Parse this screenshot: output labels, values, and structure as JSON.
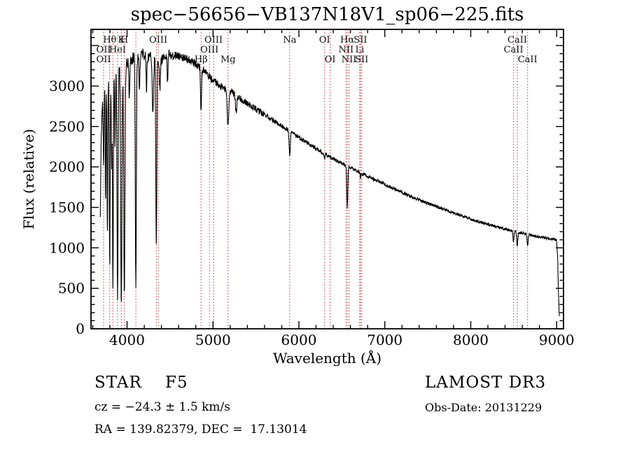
{
  "chart_data": {
    "type": "line",
    "title": "spec−56656−VB137N18V1_sp06−225.fits",
    "xlabel": "Wavelength (Å)",
    "ylabel": "Flux (relative)",
    "xlim": [
      3580,
      9080
    ],
    "ylim": [
      0,
      3700
    ],
    "xticks": [
      4000,
      5000,
      6000,
      7000,
      8000,
      9000
    ],
    "yticks": [
      0,
      500,
      1000,
      1500,
      2000,
      2500,
      3000
    ],
    "x_minor_step": 200,
    "y_minor_step": 100,
    "y_major_step": 500,
    "grid": false,
    "legend": "none",
    "line_color": "#000000",
    "marker_line_color": "#c03030",
    "marker_label_color": "#111111",
    "frame_color": "#000000",
    "series_name": "flux",
    "wl_start": 3688,
    "wl_end": 9032,
    "wl_step": 3,
    "noise_seed": 12,
    "continuum": [
      [
        3688,
        1400
      ],
      [
        3700,
        2450
      ],
      [
        3715,
        2820
      ],
      [
        3735,
        2980
      ],
      [
        3765,
        3060
      ],
      [
        3800,
        3120
      ],
      [
        3850,
        3170
      ],
      [
        3900,
        3210
      ],
      [
        3950,
        3240
      ],
      [
        4000,
        3290
      ],
      [
        4080,
        3350
      ],
      [
        4180,
        3400
      ],
      [
        4280,
        3360
      ],
      [
        4380,
        3330
      ],
      [
        4480,
        3370
      ],
      [
        4580,
        3380
      ],
      [
        4680,
        3340
      ],
      [
        4780,
        3290
      ],
      [
        4880,
        3210
      ],
      [
        4980,
        3090
      ],
      [
        5080,
        3000
      ],
      [
        5180,
        2940
      ],
      [
        5280,
        2880
      ],
      [
        5380,
        2800
      ],
      [
        5480,
        2730
      ],
      [
        5580,
        2660
      ],
      [
        5680,
        2590
      ],
      [
        5780,
        2520
      ],
      [
        5880,
        2450
      ],
      [
        5980,
        2380
      ],
      [
        6080,
        2310
      ],
      [
        6180,
        2240
      ],
      [
        6280,
        2175
      ],
      [
        6380,
        2115
      ],
      [
        6480,
        2055
      ],
      [
        6580,
        2000
      ],
      [
        6680,
        1950
      ],
      [
        6780,
        1895
      ],
      [
        6880,
        1845
      ],
      [
        6980,
        1795
      ],
      [
        7080,
        1745
      ],
      [
        7180,
        1695
      ],
      [
        7280,
        1648
      ],
      [
        7380,
        1602
      ],
      [
        7480,
        1558
      ],
      [
        7580,
        1518
      ],
      [
        7680,
        1478
      ],
      [
        7780,
        1440
      ],
      [
        7880,
        1402
      ],
      [
        7980,
        1365
      ],
      [
        8080,
        1330
      ],
      [
        8180,
        1298
      ],
      [
        8280,
        1268
      ],
      [
        8380,
        1238
      ],
      [
        8480,
        1212
      ],
      [
        8580,
        1188
      ],
      [
        8680,
        1163
      ],
      [
        8780,
        1142
      ],
      [
        8880,
        1122
      ],
      [
        8960,
        1105
      ],
      [
        9000,
        1092
      ],
      [
        9012,
        880
      ],
      [
        9022,
        420
      ],
      [
        9032,
        130
      ]
    ],
    "absorption_lines": [
      {
        "center": 3727,
        "depth": 900,
        "sigma": 5
      },
      {
        "center": 3750,
        "depth": 1500,
        "sigma": 4
      },
      {
        "center": 3771,
        "depth": 1900,
        "sigma": 4
      },
      {
        "center": 3798,
        "depth": 2350,
        "sigma": 5
      },
      {
        "center": 3820,
        "depth": 1100,
        "sigma": 4
      },
      {
        "center": 3835,
        "depth": 2650,
        "sigma": 5
      },
      {
        "center": 3860,
        "depth": 900,
        "sigma": 4
      },
      {
        "center": 3889,
        "depth": 2850,
        "sigma": 6
      },
      {
        "center": 3933,
        "depth": 2950,
        "sigma": 7
      },
      {
        "center": 3968,
        "depth": 2850,
        "sigma": 7
      },
      {
        "center": 4026,
        "depth": 450,
        "sigma": 5
      },
      {
        "center": 4102,
        "depth": 2850,
        "sigma": 6
      },
      {
        "center": 4144,
        "depth": 400,
        "sigma": 5
      },
      {
        "center": 4226,
        "depth": 450,
        "sigma": 5
      },
      {
        "center": 4300,
        "depth": 650,
        "sigma": 8
      },
      {
        "center": 4340,
        "depth": 2350,
        "sigma": 6
      },
      {
        "center": 4383,
        "depth": 400,
        "sigma": 5
      },
      {
        "center": 4471,
        "depth": 330,
        "sigma": 5
      },
      {
        "center": 4861,
        "depth": 560,
        "sigma": 6
      },
      {
        "center": 5175,
        "depth": 430,
        "sigma": 9
      },
      {
        "center": 5270,
        "depth": 230,
        "sigma": 7
      },
      {
        "center": 5893,
        "depth": 290,
        "sigma": 7
      },
      {
        "center": 6300,
        "depth": 80,
        "sigma": 5
      },
      {
        "center": 6563,
        "depth": 520,
        "sigma": 6
      },
      {
        "center": 6716,
        "depth": 60,
        "sigma": 5
      },
      {
        "center": 8498,
        "depth": 130,
        "sigma": 6
      },
      {
        "center": 8542,
        "depth": 175,
        "sigma": 6
      },
      {
        "center": 8662,
        "depth": 150,
        "sigma": 6
      }
    ],
    "marker_lines": [
      3727,
      3798,
      3835,
      3889,
      3933,
      3968,
      4102,
      4340,
      4363,
      4861,
      4959,
      5007,
      5175,
      5893,
      6300,
      6363,
      6548,
      6563,
      6583,
      6708,
      6716,
      6731,
      8498,
      8542,
      8662
    ],
    "marker_labels": [
      {
        "label": "Hθ",
        "wavelength": 3798,
        "row": 1
      },
      {
        "label": "K",
        "wavelength": 3933,
        "row": 1
      },
      {
        "label": "H",
        "wavelength": 3968,
        "row": 1
      },
      {
        "label": "OIII",
        "wavelength": 4363,
        "row": 1
      },
      {
        "label": "OIII",
        "wavelength": 5007,
        "row": 1
      },
      {
        "label": "Na",
        "wavelength": 5893,
        "row": 1
      },
      {
        "label": "OI",
        "wavelength": 6300,
        "row": 1
      },
      {
        "label": "Hα",
        "wavelength": 6563,
        "row": 1
      },
      {
        "label": "SII",
        "wavelength": 6716,
        "row": 1
      },
      {
        "label": "CaII",
        "wavelength": 8542,
        "row": 1
      },
      {
        "label": "OII",
        "wavelength": 3727,
        "row": 2
      },
      {
        "label": "HeI",
        "wavelength": 3889,
        "row": 2
      },
      {
        "label": "OIII",
        "wavelength": 4959,
        "row": 2
      },
      {
        "label": "NII",
        "wavelength": 6548,
        "row": 2
      },
      {
        "label": "Li",
        "wavelength": 6708,
        "row": 2
      },
      {
        "label": "CaII",
        "wavelength": 8498,
        "row": 2
      },
      {
        "label": "OII",
        "wavelength": 3727,
        "row": 3
      },
      {
        "label": "Hβ",
        "wavelength": 4861,
        "row": 3
      },
      {
        "label": "Mg",
        "wavelength": 5175,
        "row": 3
      },
      {
        "label": "OI",
        "wavelength": 6363,
        "row": 3
      },
      {
        "label": "NII",
        "wavelength": 6583,
        "row": 3
      },
      {
        "label": "SII",
        "wavelength": 6731,
        "row": 3
      },
      {
        "label": "CaII",
        "wavelength": 8662,
        "row": 3
      }
    ]
  },
  "annotations": {
    "class_line": "STAR    F5",
    "survey": "LAMOST DR3",
    "cz_line": "cz = −24.3 ± 1.5 km/s",
    "obs_date": "Obs-Date: 20131229",
    "radec_line": "RA = 139.82379, DEC =  17.13014"
  }
}
